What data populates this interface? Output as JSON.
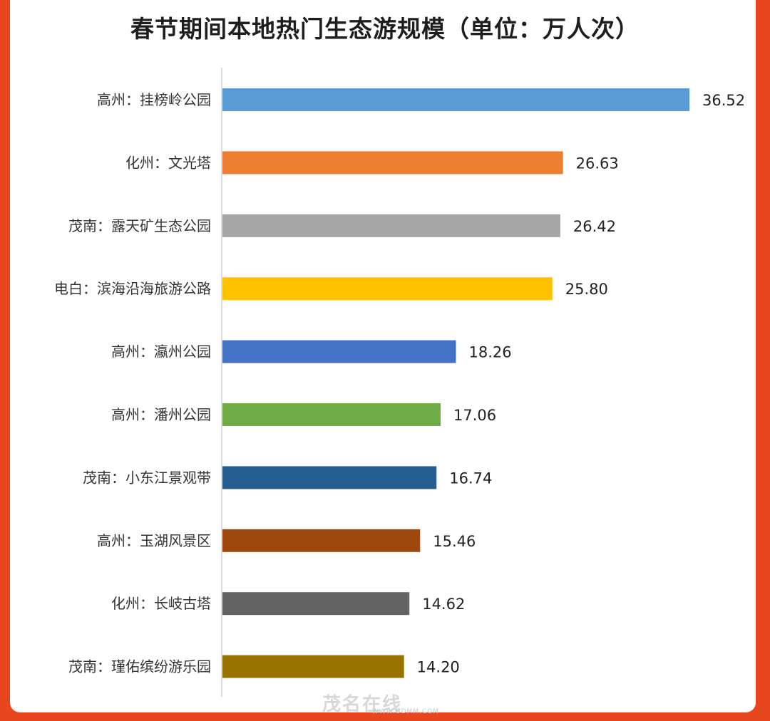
{
  "chart_data": {
    "type": "bar",
    "orientation": "horizontal",
    "title": "春节期间本地热门生态游规模（单位：万人次）",
    "categories": [
      "高州：挂榜岭公园",
      "化州：文光塔",
      "茂南：露天矿生态公园",
      "电白：滨海沿海旅游公路",
      "高州：瀛州公园",
      "高州：潘州公园",
      "茂南：小东江景观带",
      "高州：玉湖风景区",
      "化州：长岐古塔",
      "茂南：瑾佑缤纷游乐园"
    ],
    "values": [
      36.52,
      26.63,
      26.42,
      25.8,
      18.26,
      17.06,
      16.74,
      15.46,
      14.62,
      14.2
    ],
    "value_labels": [
      "36.52",
      "26.63",
      "26.42",
      "25.80",
      "18.26",
      "17.06",
      "16.74",
      "15.46",
      "14.62",
      "14.20"
    ],
    "colors": [
      "#5b9bd5",
      "#ed7d31",
      "#a5a5a5",
      "#ffc000",
      "#4472c4",
      "#70ad47",
      "#255e91",
      "#9e480e",
      "#636363",
      "#997300"
    ],
    "xlim": [
      0,
      37
    ],
    "grid": false,
    "legend": "none"
  },
  "watermark": {
    "text": "茂名在线",
    "subtext": "WWW.GDMM.COM"
  }
}
